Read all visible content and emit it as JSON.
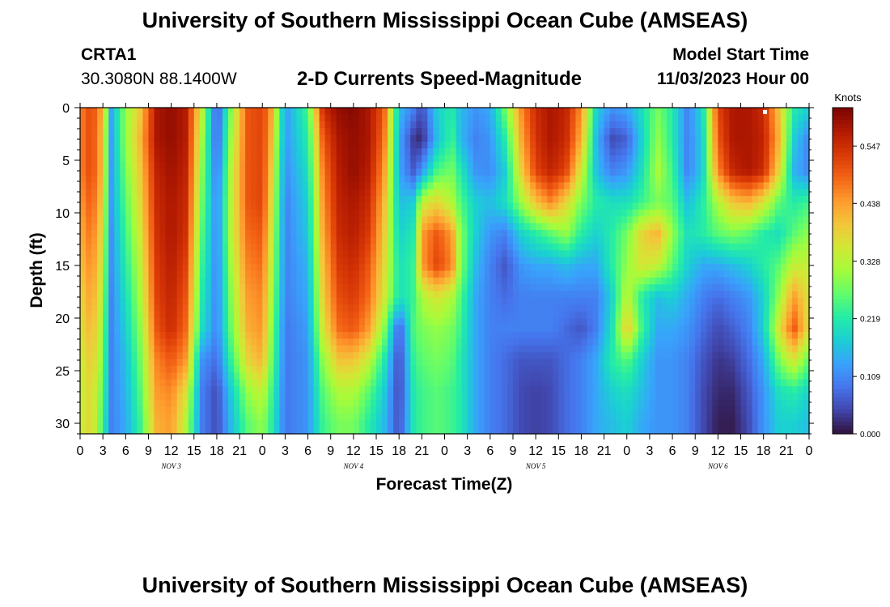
{
  "page": {
    "title_top": "University of Southern Mississippi Ocean Cube (AMSEAS)",
    "title_bottom": "University of Southern Mississippi Ocean Cube (AMSEAS)"
  },
  "header": {
    "station": "CRTA1",
    "coords": "30.3080N  88.1400W",
    "subtitle": "2-D Currents Speed-Magnitude",
    "model_start_label": "Model Start Time",
    "model_start_value": "11/03/2023 Hour 00"
  },
  "chart_data": {
    "type": "heatmap",
    "title": "2-D Currents Speed-Magnitude",
    "xlabel": "Forecast Time(Z)",
    "ylabel": "Depth (ft)",
    "x_range_hours": [
      0,
      96
    ],
    "ylim": [
      0,
      31
    ],
    "y_inverted": true,
    "x_tick_labels": [
      "0",
      "3",
      "6",
      "9",
      "12",
      "15",
      "18",
      "21",
      "0",
      "3",
      "6",
      "9",
      "12",
      "15",
      "18",
      "21",
      "0",
      "3",
      "6",
      "9",
      "12",
      "15",
      "18",
      "21",
      "0",
      "3",
      "6",
      "9",
      "12",
      "15",
      "18",
      "21",
      "0"
    ],
    "y_ticks": [
      0,
      5,
      10,
      15,
      20,
      25,
      30
    ],
    "day_labels": [
      {
        "label": "NOV 3",
        "hour": 12
      },
      {
        "label": "NOV 4",
        "hour": 36
      },
      {
        "label": "NOV 5",
        "hour": 60
      },
      {
        "label": "NOV 6",
        "hour": 84
      }
    ],
    "colorbar": {
      "label": "Knots",
      "ticks": [
        0.0,
        0.109,
        0.219,
        0.328,
        0.438,
        0.547
      ],
      "tick_labels": [
        "0.000",
        "0.109",
        "0.219",
        "0.328",
        "0.438",
        "0.547"
      ],
      "max": 0.62,
      "colors": [
        "#30123b",
        "#4145ab",
        "#4675ed",
        "#39a2fc",
        "#1bcfd4",
        "#24eca6",
        "#61fc6c",
        "#a4fc3b",
        "#d1e834",
        "#f3c63a",
        "#fe9b2d",
        "#f36315",
        "#d93806",
        "#b11901",
        "#7a0402"
      ]
    },
    "time_series_hours": [
      0,
      1.5,
      3,
      4,
      6,
      8,
      10,
      12,
      14,
      16,
      18,
      20,
      22,
      24,
      25,
      27,
      30,
      32,
      34,
      36,
      38,
      40,
      42,
      44,
      45,
      47,
      49,
      50,
      52,
      54,
      56,
      58,
      60,
      62,
      64,
      66,
      68,
      70,
      72,
      74,
      76,
      78,
      80,
      82,
      84,
      86,
      88,
      90,
      92,
      94,
      96
    ],
    "depth_levels_ft": [
      0,
      3,
      6,
      9,
      12,
      15,
      18,
      21,
      24,
      27,
      30
    ],
    "values_knots_by_depth": [
      [
        0.46,
        0.52,
        0.42,
        0.13,
        0.3,
        0.4,
        0.58,
        0.6,
        0.57,
        0.35,
        0.05,
        0.3,
        0.5,
        0.52,
        0.46,
        0.12,
        0.25,
        0.55,
        0.6,
        0.61,
        0.58,
        0.5,
        0.16,
        0.1,
        0.05,
        0.18,
        0.22,
        0.16,
        0.12,
        0.14,
        0.28,
        0.45,
        0.55,
        0.58,
        0.56,
        0.45,
        0.18,
        0.12,
        0.14,
        0.2,
        0.28,
        0.22,
        0.1,
        0.2,
        0.52,
        0.58,
        0.58,
        0.55,
        0.4,
        0.22,
        0.18
      ],
      [
        0.46,
        0.52,
        0.4,
        0.12,
        0.3,
        0.42,
        0.58,
        0.6,
        0.57,
        0.32,
        0.06,
        0.32,
        0.5,
        0.52,
        0.44,
        0.12,
        0.22,
        0.5,
        0.58,
        0.6,
        0.58,
        0.48,
        0.14,
        0.03,
        0.02,
        0.16,
        0.24,
        0.16,
        0.1,
        0.12,
        0.22,
        0.42,
        0.54,
        0.58,
        0.55,
        0.42,
        0.15,
        0.05,
        0.07,
        0.18,
        0.3,
        0.22,
        0.1,
        0.18,
        0.5,
        0.58,
        0.58,
        0.56,
        0.42,
        0.18,
        0.1
      ],
      [
        0.46,
        0.52,
        0.4,
        0.12,
        0.28,
        0.4,
        0.56,
        0.59,
        0.56,
        0.3,
        0.08,
        0.34,
        0.5,
        0.52,
        0.42,
        0.11,
        0.2,
        0.47,
        0.57,
        0.6,
        0.57,
        0.45,
        0.14,
        0.06,
        0.12,
        0.25,
        0.28,
        0.22,
        0.12,
        0.11,
        0.18,
        0.38,
        0.52,
        0.56,
        0.52,
        0.35,
        0.16,
        0.1,
        0.12,
        0.2,
        0.32,
        0.24,
        0.1,
        0.18,
        0.46,
        0.56,
        0.58,
        0.55,
        0.38,
        0.15,
        0.1
      ],
      [
        0.44,
        0.5,
        0.38,
        0.12,
        0.26,
        0.38,
        0.55,
        0.58,
        0.55,
        0.28,
        0.1,
        0.34,
        0.5,
        0.52,
        0.4,
        0.1,
        0.18,
        0.45,
        0.56,
        0.58,
        0.55,
        0.42,
        0.16,
        0.18,
        0.34,
        0.38,
        0.32,
        0.26,
        0.18,
        0.16,
        0.2,
        0.3,
        0.4,
        0.46,
        0.38,
        0.28,
        0.22,
        0.2,
        0.2,
        0.24,
        0.28,
        0.26,
        0.16,
        0.22,
        0.32,
        0.4,
        0.42,
        0.36,
        0.26,
        0.22,
        0.24
      ],
      [
        0.42,
        0.48,
        0.36,
        0.11,
        0.24,
        0.36,
        0.54,
        0.58,
        0.54,
        0.26,
        0.1,
        0.34,
        0.48,
        0.5,
        0.38,
        0.1,
        0.17,
        0.43,
        0.55,
        0.57,
        0.53,
        0.4,
        0.18,
        0.22,
        0.44,
        0.5,
        0.44,
        0.3,
        0.18,
        0.12,
        0.1,
        0.18,
        0.22,
        0.26,
        0.3,
        0.22,
        0.18,
        0.22,
        0.28,
        0.38,
        0.42,
        0.3,
        0.2,
        0.22,
        0.26,
        0.28,
        0.26,
        0.22,
        0.2,
        0.26,
        0.3
      ],
      [
        0.4,
        0.46,
        0.34,
        0.11,
        0.22,
        0.34,
        0.53,
        0.57,
        0.52,
        0.24,
        0.1,
        0.32,
        0.46,
        0.48,
        0.36,
        0.1,
        0.15,
        0.41,
        0.53,
        0.55,
        0.5,
        0.38,
        0.2,
        0.24,
        0.44,
        0.52,
        0.46,
        0.3,
        0.16,
        0.1,
        0.06,
        0.12,
        0.14,
        0.14,
        0.16,
        0.14,
        0.14,
        0.22,
        0.3,
        0.36,
        0.34,
        0.26,
        0.18,
        0.14,
        0.14,
        0.16,
        0.18,
        0.22,
        0.26,
        0.34,
        0.34
      ],
      [
        0.38,
        0.44,
        0.32,
        0.1,
        0.2,
        0.32,
        0.52,
        0.56,
        0.5,
        0.22,
        0.1,
        0.3,
        0.44,
        0.46,
        0.34,
        0.1,
        0.14,
        0.39,
        0.51,
        0.53,
        0.48,
        0.36,
        0.2,
        0.24,
        0.32,
        0.36,
        0.32,
        0.26,
        0.14,
        0.1,
        0.08,
        0.1,
        0.1,
        0.1,
        0.1,
        0.1,
        0.1,
        0.18,
        0.34,
        0.22,
        0.16,
        0.18,
        0.14,
        0.1,
        0.08,
        0.1,
        0.12,
        0.18,
        0.3,
        0.44,
        0.36
      ],
      [
        0.36,
        0.42,
        0.3,
        0.1,
        0.18,
        0.3,
        0.5,
        0.55,
        0.48,
        0.2,
        0.1,
        0.28,
        0.42,
        0.45,
        0.32,
        0.09,
        0.13,
        0.36,
        0.48,
        0.5,
        0.44,
        0.3,
        0.06,
        0.26,
        0.28,
        0.3,
        0.28,
        0.24,
        0.14,
        0.1,
        0.1,
        0.1,
        0.1,
        0.1,
        0.08,
        0.06,
        0.1,
        0.2,
        0.4,
        0.24,
        0.14,
        0.14,
        0.12,
        0.08,
        0.05,
        0.07,
        0.1,
        0.18,
        0.36,
        0.5,
        0.36
      ],
      [
        0.34,
        0.4,
        0.28,
        0.1,
        0.16,
        0.28,
        0.46,
        0.5,
        0.44,
        0.12,
        0.08,
        0.24,
        0.38,
        0.42,
        0.3,
        0.09,
        0.12,
        0.3,
        0.4,
        0.4,
        0.34,
        0.22,
        0.04,
        0.24,
        0.26,
        0.28,
        0.26,
        0.22,
        0.14,
        0.1,
        0.08,
        0.06,
        0.06,
        0.06,
        0.08,
        0.1,
        0.14,
        0.22,
        0.26,
        0.18,
        0.12,
        0.12,
        0.1,
        0.06,
        0.03,
        0.04,
        0.08,
        0.14,
        0.28,
        0.36,
        0.26
      ],
      [
        0.34,
        0.38,
        0.26,
        0.1,
        0.15,
        0.26,
        0.44,
        0.46,
        0.36,
        0.1,
        0.05,
        0.18,
        0.3,
        0.34,
        0.26,
        0.09,
        0.12,
        0.26,
        0.32,
        0.32,
        0.26,
        0.18,
        0.04,
        0.22,
        0.24,
        0.26,
        0.24,
        0.22,
        0.14,
        0.1,
        0.08,
        0.05,
        0.04,
        0.05,
        0.08,
        0.1,
        0.14,
        0.18,
        0.2,
        0.16,
        0.12,
        0.12,
        0.1,
        0.05,
        0.02,
        0.02,
        0.06,
        0.12,
        0.2,
        0.22,
        0.18
      ],
      [
        0.34,
        0.38,
        0.24,
        0.1,
        0.14,
        0.24,
        0.42,
        0.44,
        0.32,
        0.1,
        0.05,
        0.16,
        0.26,
        0.3,
        0.24,
        0.09,
        0.12,
        0.24,
        0.28,
        0.28,
        0.22,
        0.16,
        0.05,
        0.22,
        0.24,
        0.26,
        0.24,
        0.22,
        0.14,
        0.1,
        0.08,
        0.05,
        0.04,
        0.05,
        0.08,
        0.1,
        0.14,
        0.16,
        0.18,
        0.14,
        0.12,
        0.12,
        0.1,
        0.05,
        0.01,
        0.01,
        0.05,
        0.12,
        0.18,
        0.18,
        0.16
      ]
    ]
  }
}
